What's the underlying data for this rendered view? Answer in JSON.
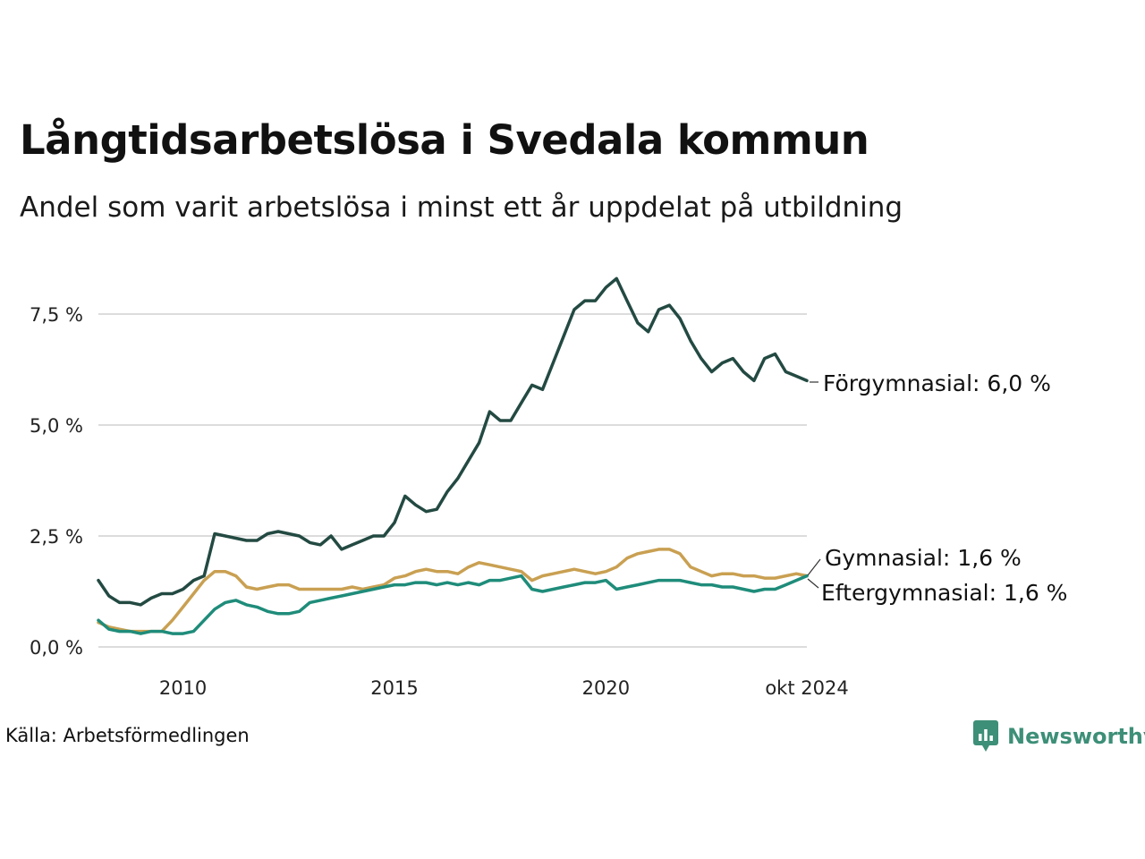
{
  "header": {
    "title": "Långtidsarbetslösa i Svedala kommun",
    "subtitle": "Andel som varit arbetslösa i minst ett år uppdelat på utbildning"
  },
  "footer": {
    "source": "Källa: Arbetsförmedlingen",
    "brand": "Newsworthy",
    "brand_color": "#3d8f77"
  },
  "chart_data": {
    "type": "line",
    "x_ticks": [
      {
        "date": "2010",
        "label": "2010"
      },
      {
        "date": "2015",
        "label": "2015"
      },
      {
        "date": "2020",
        "label": "2020"
      },
      {
        "date": "2024-10",
        "label": "okt 2024"
      }
    ],
    "xlim": [
      "2008-01",
      "2024-10"
    ],
    "y_ticks": [
      {
        "value": 0,
        "label": "0,0 %"
      },
      {
        "value": 2.5,
        "label": "2,5 %"
      },
      {
        "value": 5,
        "label": "5,0 %"
      },
      {
        "value": 7.5,
        "label": "7,5 %"
      }
    ],
    "ylim": [
      0,
      8.6
    ],
    "grid": true,
    "series": [
      {
        "name": "Förgymnasial",
        "end_label": "Förgymnasial: 6,0 %",
        "color": "#234a42",
        "points": [
          [
            "2008-01",
            1.5
          ],
          [
            "2008-04",
            1.15
          ],
          [
            "2008-07",
            1.0
          ],
          [
            "2008-10",
            1.0
          ],
          [
            "2009-01",
            0.95
          ],
          [
            "2009-04",
            1.1
          ],
          [
            "2009-07",
            1.2
          ],
          [
            "2009-10",
            1.2
          ],
          [
            "2010-01",
            1.3
          ],
          [
            "2010-04",
            1.5
          ],
          [
            "2010-07",
            1.6
          ],
          [
            "2010-10",
            2.55
          ],
          [
            "2011-01",
            2.5
          ],
          [
            "2011-04",
            2.45
          ],
          [
            "2011-07",
            2.4
          ],
          [
            "2011-10",
            2.4
          ],
          [
            "2012-01",
            2.55
          ],
          [
            "2012-04",
            2.6
          ],
          [
            "2012-07",
            2.55
          ],
          [
            "2012-10",
            2.5
          ],
          [
            "2013-01",
            2.35
          ],
          [
            "2013-04",
            2.3
          ],
          [
            "2013-07",
            2.5
          ],
          [
            "2013-10",
            2.2
          ],
          [
            "2014-01",
            2.3
          ],
          [
            "2014-04",
            2.4
          ],
          [
            "2014-07",
            2.5
          ],
          [
            "2014-10",
            2.5
          ],
          [
            "2015-01",
            2.8
          ],
          [
            "2015-04",
            3.4
          ],
          [
            "2015-07",
            3.2
          ],
          [
            "2015-10",
            3.05
          ],
          [
            "2016-01",
            3.1
          ],
          [
            "2016-04",
            3.5
          ],
          [
            "2016-07",
            3.8
          ],
          [
            "2016-10",
            4.2
          ],
          [
            "2017-01",
            4.6
          ],
          [
            "2017-04",
            5.3
          ],
          [
            "2017-07",
            5.1
          ],
          [
            "2017-10",
            5.1
          ],
          [
            "2018-01",
            5.5
          ],
          [
            "2018-04",
            5.9
          ],
          [
            "2018-07",
            5.8
          ],
          [
            "2018-10",
            6.4
          ],
          [
            "2019-01",
            7.0
          ],
          [
            "2019-04",
            7.6
          ],
          [
            "2019-07",
            7.8
          ],
          [
            "2019-10",
            7.8
          ],
          [
            "2020-01",
            8.1
          ],
          [
            "2020-04",
            8.3
          ],
          [
            "2020-07",
            7.8
          ],
          [
            "2020-10",
            7.3
          ],
          [
            "2021-01",
            7.1
          ],
          [
            "2021-04",
            7.6
          ],
          [
            "2021-07",
            7.7
          ],
          [
            "2021-10",
            7.4
          ],
          [
            "2022-01",
            6.9
          ],
          [
            "2022-04",
            6.5
          ],
          [
            "2022-07",
            6.2
          ],
          [
            "2022-10",
            6.4
          ],
          [
            "2023-01",
            6.5
          ],
          [
            "2023-04",
            6.2
          ],
          [
            "2023-07",
            6.0
          ],
          [
            "2023-10",
            6.5
          ],
          [
            "2024-01",
            6.6
          ],
          [
            "2024-04",
            6.2
          ],
          [
            "2024-07",
            6.1
          ],
          [
            "2024-10",
            6.0
          ]
        ]
      },
      {
        "name": "Gymnasial",
        "end_label": "Gymnasial: 1,6 %",
        "color": "#c9a052",
        "points": [
          [
            "2008-01",
            0.55
          ],
          [
            "2008-04",
            0.45
          ],
          [
            "2008-07",
            0.4
          ],
          [
            "2008-10",
            0.35
          ],
          [
            "2009-01",
            0.35
          ],
          [
            "2009-04",
            0.35
          ],
          [
            "2009-07",
            0.35
          ],
          [
            "2009-10",
            0.6
          ],
          [
            "2010-01",
            0.9
          ],
          [
            "2010-04",
            1.2
          ],
          [
            "2010-07",
            1.5
          ],
          [
            "2010-10",
            1.7
          ],
          [
            "2011-01",
            1.7
          ],
          [
            "2011-04",
            1.6
          ],
          [
            "2011-07",
            1.35
          ],
          [
            "2011-10",
            1.3
          ],
          [
            "2012-01",
            1.35
          ],
          [
            "2012-04",
            1.4
          ],
          [
            "2012-07",
            1.4
          ],
          [
            "2012-10",
            1.3
          ],
          [
            "2013-01",
            1.3
          ],
          [
            "2013-04",
            1.3
          ],
          [
            "2013-07",
            1.3
          ],
          [
            "2013-10",
            1.3
          ],
          [
            "2014-01",
            1.35
          ],
          [
            "2014-04",
            1.3
          ],
          [
            "2014-07",
            1.35
          ],
          [
            "2014-10",
            1.4
          ],
          [
            "2015-01",
            1.55
          ],
          [
            "2015-04",
            1.6
          ],
          [
            "2015-07",
            1.7
          ],
          [
            "2015-10",
            1.75
          ],
          [
            "2016-01",
            1.7
          ],
          [
            "2016-04",
            1.7
          ],
          [
            "2016-07",
            1.65
          ],
          [
            "2016-10",
            1.8
          ],
          [
            "2017-01",
            1.9
          ],
          [
            "2017-04",
            1.85
          ],
          [
            "2017-07",
            1.8
          ],
          [
            "2017-10",
            1.75
          ],
          [
            "2018-01",
            1.7
          ],
          [
            "2018-04",
            1.5
          ],
          [
            "2018-07",
            1.6
          ],
          [
            "2018-10",
            1.65
          ],
          [
            "2019-01",
            1.7
          ],
          [
            "2019-04",
            1.75
          ],
          [
            "2019-07",
            1.7
          ],
          [
            "2019-10",
            1.65
          ],
          [
            "2020-01",
            1.7
          ],
          [
            "2020-04",
            1.8
          ],
          [
            "2020-07",
            2.0
          ],
          [
            "2020-10",
            2.1
          ],
          [
            "2021-01",
            2.15
          ],
          [
            "2021-04",
            2.2
          ],
          [
            "2021-07",
            2.2
          ],
          [
            "2021-10",
            2.1
          ],
          [
            "2022-01",
            1.8
          ],
          [
            "2022-04",
            1.7
          ],
          [
            "2022-07",
            1.6
          ],
          [
            "2022-10",
            1.65
          ],
          [
            "2023-01",
            1.65
          ],
          [
            "2023-04",
            1.6
          ],
          [
            "2023-07",
            1.6
          ],
          [
            "2023-10",
            1.55
          ],
          [
            "2024-01",
            1.55
          ],
          [
            "2024-04",
            1.6
          ],
          [
            "2024-07",
            1.65
          ],
          [
            "2024-10",
            1.6
          ]
        ]
      },
      {
        "name": "Eftergymnasial",
        "end_label": "Eftergymnasial: 1,6 %",
        "color": "#1f8c7a",
        "points": [
          [
            "2008-01",
            0.6
          ],
          [
            "2008-04",
            0.4
          ],
          [
            "2008-07",
            0.35
          ],
          [
            "2008-10",
            0.35
          ],
          [
            "2009-01",
            0.3
          ],
          [
            "2009-04",
            0.35
          ],
          [
            "2009-07",
            0.35
          ],
          [
            "2009-10",
            0.3
          ],
          [
            "2010-01",
            0.3
          ],
          [
            "2010-04",
            0.35
          ],
          [
            "2010-07",
            0.6
          ],
          [
            "2010-10",
            0.85
          ],
          [
            "2011-01",
            1.0
          ],
          [
            "2011-04",
            1.05
          ],
          [
            "2011-07",
            0.95
          ],
          [
            "2011-10",
            0.9
          ],
          [
            "2012-01",
            0.8
          ],
          [
            "2012-04",
            0.75
          ],
          [
            "2012-07",
            0.75
          ],
          [
            "2012-10",
            0.8
          ],
          [
            "2013-01",
            1.0
          ],
          [
            "2013-04",
            1.05
          ],
          [
            "2013-07",
            1.1
          ],
          [
            "2013-10",
            1.15
          ],
          [
            "2014-01",
            1.2
          ],
          [
            "2014-04",
            1.25
          ],
          [
            "2014-07",
            1.3
          ],
          [
            "2014-10",
            1.35
          ],
          [
            "2015-01",
            1.4
          ],
          [
            "2015-04",
            1.4
          ],
          [
            "2015-07",
            1.45
          ],
          [
            "2015-10",
            1.45
          ],
          [
            "2016-01",
            1.4
          ],
          [
            "2016-04",
            1.45
          ],
          [
            "2016-07",
            1.4
          ],
          [
            "2016-10",
            1.45
          ],
          [
            "2017-01",
            1.4
          ],
          [
            "2017-04",
            1.5
          ],
          [
            "2017-07",
            1.5
          ],
          [
            "2017-10",
            1.55
          ],
          [
            "2018-01",
            1.6
          ],
          [
            "2018-04",
            1.3
          ],
          [
            "2018-07",
            1.25
          ],
          [
            "2018-10",
            1.3
          ],
          [
            "2019-01",
            1.35
          ],
          [
            "2019-04",
            1.4
          ],
          [
            "2019-07",
            1.45
          ],
          [
            "2019-10",
            1.45
          ],
          [
            "2020-01",
            1.5
          ],
          [
            "2020-04",
            1.3
          ],
          [
            "2020-07",
            1.35
          ],
          [
            "2020-10",
            1.4
          ],
          [
            "2021-01",
            1.45
          ],
          [
            "2021-04",
            1.5
          ],
          [
            "2021-07",
            1.5
          ],
          [
            "2021-10",
            1.5
          ],
          [
            "2022-01",
            1.45
          ],
          [
            "2022-04",
            1.4
          ],
          [
            "2022-07",
            1.4
          ],
          [
            "2022-10",
            1.35
          ],
          [
            "2023-01",
            1.35
          ],
          [
            "2023-04",
            1.3
          ],
          [
            "2023-07",
            1.25
          ],
          [
            "2023-10",
            1.3
          ],
          [
            "2024-01",
            1.3
          ],
          [
            "2024-04",
            1.4
          ],
          [
            "2024-07",
            1.5
          ],
          [
            "2024-10",
            1.6
          ]
        ]
      }
    ]
  }
}
